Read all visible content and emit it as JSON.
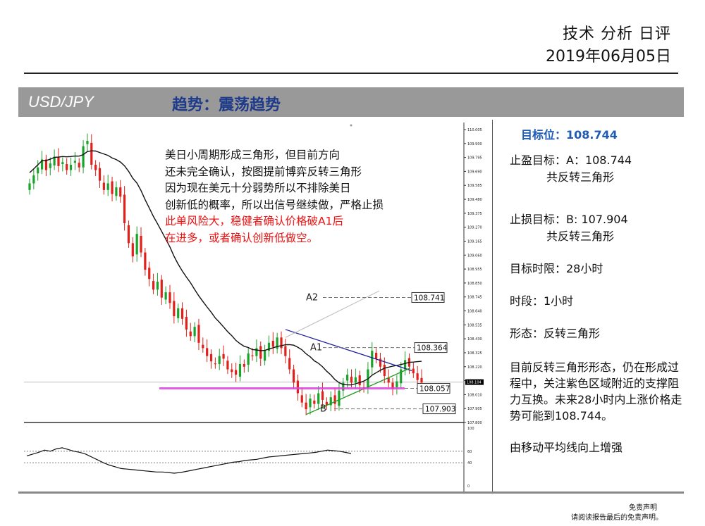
{
  "header": {
    "title": "技术 分析 日评",
    "date": "2019年06月05日"
  },
  "band": {
    "pair": "USD/JPY",
    "trend": "趋势：震荡趋势"
  },
  "note": {
    "lines": [
      "美日小周期形成三角形，但目前方向",
      "还未完全确认，按图提前博弈反转三角形",
      "因为现在美元十分弱势所以不排除美日",
      "创新低的概率，所以出信号继续做，严格止损"
    ],
    "red_lines": [
      "此单风险大，稳健者确认价格破A1后",
      "在进多，或者确认创新低做空。"
    ]
  },
  "panel": {
    "target_label": "目标位：108.744",
    "tp_line1": "止盈目标：A：108.744",
    "tp_line2": "共反转三角形",
    "sl_line1": "止损目标：B: 107.904",
    "sl_line2": "共反转三角形",
    "time_limit": "目标时限：28小时",
    "period": "时段：1小时",
    "pattern": "形态：反转三角形",
    "description": "目前反转三角形形态，仍在形成过程中，关注紫色区域附近的支撑阻力互换。未来28小时内上涨价格走势可能到108.744。",
    "ma_note": "由移动平均线向上增强"
  },
  "disclaimer": {
    "line1": "免责声明",
    "line2": "请阅读报告最后的免责声明。"
  },
  "chart_data": {
    "type": "candlestick",
    "timeframe": "1小时",
    "y_ticks": [
      "110.005",
      "109.900",
      "109.795",
      "109.690",
      "109.585",
      "109.480",
      "109.375",
      "109.270",
      "109.165",
      "109.060",
      "108.955",
      "108.850",
      "108.745",
      "108.640",
      "108.535",
      "108.430",
      "108.325",
      "108.220",
      "108.115",
      "108.010",
      "107.905",
      "107.800"
    ],
    "ylim": [
      107.8,
      110.005
    ],
    "current_price": "108.104",
    "levels": [
      {
        "name": "A2",
        "value": "108.741"
      },
      {
        "name": "A1",
        "value": "108.364"
      },
      {
        "name": "",
        "value": "108.057"
      },
      {
        "name": "B",
        "value": "107.903"
      }
    ],
    "closes": [
      109.6,
      109.66,
      109.72,
      109.78,
      109.7,
      109.75,
      109.8,
      109.73,
      109.76,
      109.7,
      109.74,
      109.77,
      109.72,
      109.88,
      109.92,
      109.74,
      109.7,
      109.62,
      109.55,
      109.6,
      109.52,
      109.57,
      109.5,
      109.3,
      109.15,
      109.05,
      109.22,
      109.08,
      108.95,
      108.88,
      108.8,
      108.86,
      108.74,
      108.78,
      108.7,
      108.6,
      108.66,
      108.58,
      108.5,
      108.45,
      108.52,
      108.4,
      108.36,
      108.3,
      108.26,
      108.24,
      108.3,
      108.28,
      108.2,
      108.18,
      108.16,
      108.24,
      108.22,
      108.32,
      108.3,
      108.36,
      108.28,
      108.34,
      108.4,
      108.37,
      108.44,
      108.36,
      108.3,
      108.2,
      108.1,
      108.02,
      107.95,
      107.9,
      107.98,
      107.94,
      108.02,
      107.97,
      107.93,
      107.99,
      107.94,
      108.04,
      108.1,
      108.16,
      108.1,
      108.14,
      108.08,
      108.06,
      108.2,
      108.34,
      108.28,
      108.22,
      108.15,
      108.1,
      108.05,
      108.11,
      108.2,
      108.27,
      108.22,
      108.17,
      108.12,
      108.1
    ],
    "oscillator": {
      "levels": [
        "60",
        "40"
      ],
      "bottom": "0",
      "top": "100"
    }
  }
}
